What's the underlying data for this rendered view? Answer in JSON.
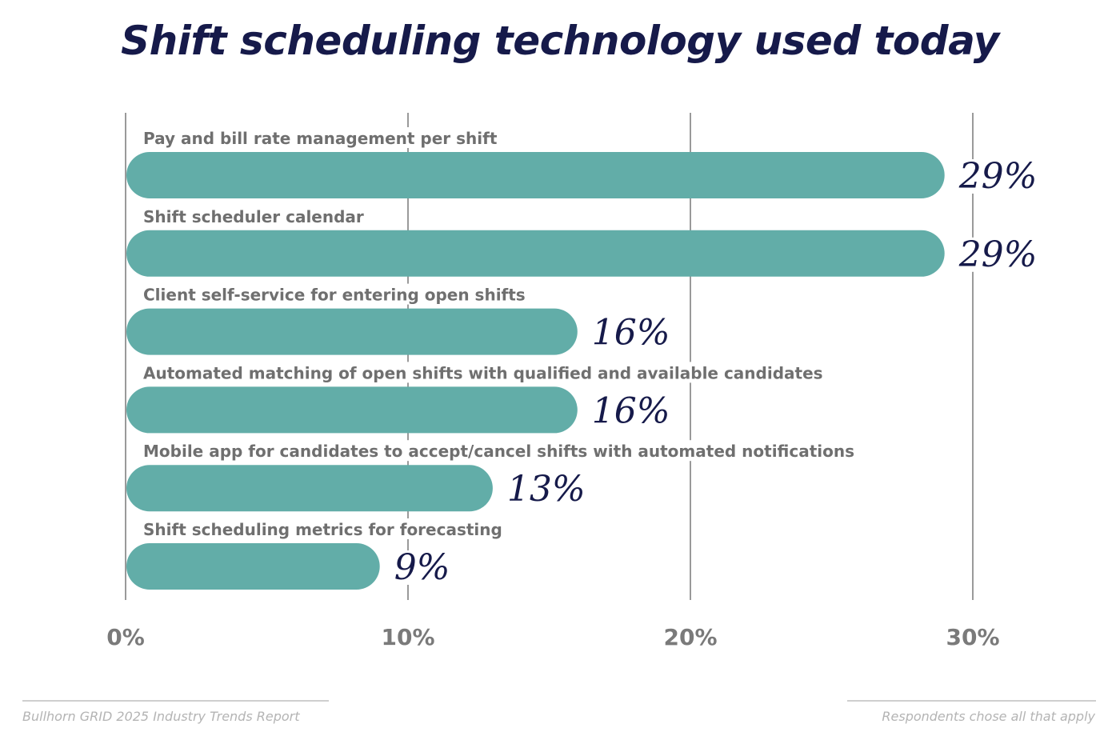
{
  "chart_data": {
    "type": "bar",
    "orientation": "horizontal",
    "title": "Shift scheduling technology used today",
    "categories": [
      "Pay and bill rate management per shift",
      "Shift scheduler calendar",
      "Client self-service for entering open shifts",
      "Automated matching of open shifts with qualified and available candidates",
      "Mobile app for candidates to accept/cancel shifts with automated notifications",
      "Shift scheduling metrics for forecasting"
    ],
    "values": [
      29,
      29,
      16,
      16,
      13,
      9
    ],
    "value_labels": [
      "29%",
      "29%",
      "16%",
      "16%",
      "13%",
      "9%"
    ],
    "xticks": [
      0,
      10,
      20,
      30
    ],
    "xtick_labels": [
      "0%",
      "10%",
      "20%",
      "30%"
    ],
    "xlim": [
      0,
      30
    ],
    "grid": true,
    "legend": "none",
    "bar_color": "#62ada8",
    "title_color": "#161a4a",
    "label_color": "#6f6f6f",
    "value_color": "#161a4a"
  },
  "footer": {
    "source": "Bullhorn GRID 2025 Industry Trends Report",
    "note": "Respondents chose all that apply"
  }
}
